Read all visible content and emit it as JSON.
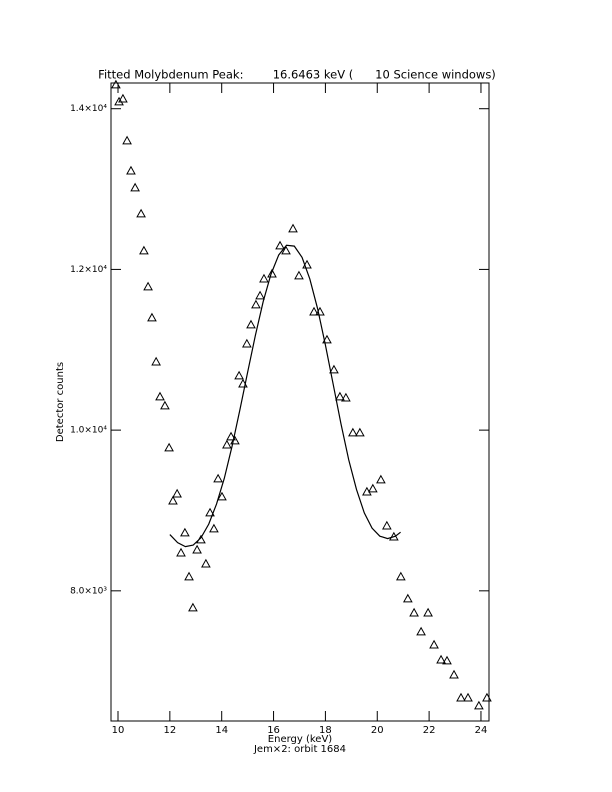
{
  "chart_data": {
    "type": "scatter",
    "title": "Fitted Molybdenum Peak:        16.6463 keV (      10 Science windows)",
    "x_label": "Energy (keV)",
    "y_label": "Detector counts",
    "subtitle": "Jem×2: orbit 1684",
    "xlim": [
      9.73,
      24.31
    ],
    "ylim": [
      6380,
      14320
    ],
    "xticks": [
      10,
      12,
      14,
      16,
      18,
      20,
      22,
      24
    ],
    "yticks": [
      {
        "value": 8000,
        "label": "8.0×10³"
      },
      {
        "value": 10000,
        "label": "1.0×10⁴"
      },
      {
        "value": 12000,
        "label": "1.2×10⁴"
      },
      {
        "value": 14000,
        "label": "1.4×10⁴"
      }
    ],
    "grid": false,
    "series": [
      {
        "type": "scatter",
        "marker": "triangle",
        "color": "#000000",
        "x": [
          9.92,
          10.04,
          10.19,
          10.35,
          10.5,
          10.66,
          10.89,
          11.0,
          11.16,
          11.31,
          11.47,
          11.62,
          11.81,
          11.97,
          12.12,
          12.28,
          12.43,
          12.58,
          12.74,
          12.89,
          13.05,
          13.2,
          13.39,
          13.55,
          13.7,
          13.86,
          14.01,
          14.2,
          14.36,
          14.51,
          14.67,
          14.82,
          14.97,
          15.13,
          15.32,
          15.48,
          15.63,
          15.94,
          16.25,
          16.48,
          16.75,
          16.98,
          17.29,
          17.56,
          17.79,
          18.06,
          18.33,
          18.56,
          18.79,
          19.06,
          19.33,
          19.6,
          19.83,
          20.14,
          20.37,
          20.64,
          20.91,
          21.18,
          21.42,
          21.69,
          21.96,
          22.19,
          22.46,
          22.69,
          22.96,
          23.23,
          23.5,
          23.92,
          24.23
        ],
        "values": [
          14299,
          14087,
          14124,
          13602,
          13228,
          13017,
          12693,
          12233,
          11785,
          11399,
          10851,
          10416,
          10304,
          9781,
          9121,
          9208,
          8474,
          8723,
          8176,
          7790,
          8511,
          8636,
          8337,
          8972,
          8773,
          9395,
          9171,
          9818,
          9918,
          9868,
          10677,
          10577,
          11075,
          11312,
          11561,
          11673,
          11884,
          11946,
          12295,
          12233,
          12507,
          11922,
          12058,
          11473,
          11473,
          11125,
          10752,
          10416,
          10403,
          9968,
          9968,
          9233,
          9271,
          9383,
          8810,
          8673,
          8176,
          7902,
          7727,
          7491,
          7727,
          7329,
          7142,
          7130,
          6955,
          6669,
          6669,
          6570,
          6669
        ]
      },
      {
        "type": "line",
        "color": "#000000",
        "x": [
          12.0,
          12.3,
          12.6,
          12.9,
          13.2,
          13.5,
          13.8,
          14.1,
          14.4,
          14.7,
          15.0,
          15.3,
          15.6,
          15.9,
          16.2,
          16.5,
          16.8,
          17.1,
          17.4,
          17.7,
          18.0,
          18.3,
          18.6,
          18.9,
          19.2,
          19.5,
          19.8,
          20.1,
          20.4,
          20.7,
          20.9
        ],
        "values": [
          8700,
          8600,
          8550,
          8570,
          8660,
          8830,
          9080,
          9400,
          9800,
          10250,
          10720,
          11180,
          11600,
          11940,
          12180,
          12300,
          12290,
          12150,
          11880,
          11510,
          11060,
          10570,
          10080,
          9630,
          9260,
          8970,
          8780,
          8680,
          8650,
          8680,
          8730
        ]
      }
    ]
  }
}
